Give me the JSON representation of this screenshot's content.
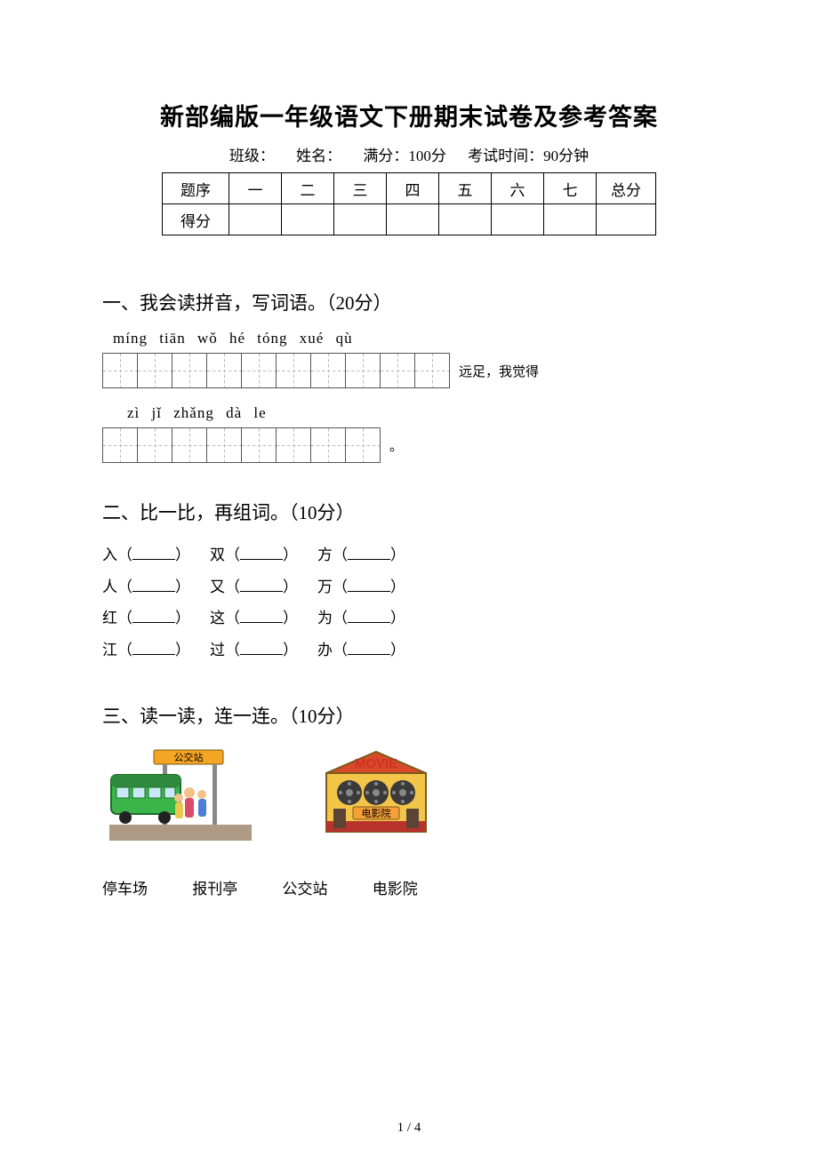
{
  "title": "新部编版一年级语文下册期末试卷及参考答案",
  "meta": {
    "class_label": "班级：",
    "name_label": "姓名：",
    "full_marks_label": "满分：100分",
    "time_label": "考试时间：90分钟"
  },
  "score_table": {
    "row1_label": "题序",
    "row2_label": "得分",
    "cols": [
      "一",
      "二",
      "三",
      "四",
      "五",
      "六",
      "七",
      "总分"
    ]
  },
  "section1": {
    "heading": "一、我会读拼音，写词语。（20分）",
    "line1_pinyin": [
      "míng",
      "tiān",
      "wǒ",
      "hé",
      "tóng",
      "xué",
      "qù"
    ],
    "line1_boxes": 10,
    "line1_after": "远足，我觉得",
    "line2_pinyin": [
      "zì",
      "jǐ",
      "zhǎng",
      "dà",
      "le"
    ],
    "line2_boxes": 8,
    "line2_after": "。"
  },
  "section2": {
    "heading": "二、比一比，再组词。（10分）",
    "rows": [
      [
        "入",
        "双",
        "方"
      ],
      [
        "人",
        "又",
        "万"
      ],
      [
        "红",
        "这",
        "为"
      ],
      [
        "江",
        "过",
        "办"
      ]
    ]
  },
  "section3": {
    "heading": "三、读一读，连一连。（10分）",
    "words": [
      "停车场",
      "报刊亭",
      "公交站",
      "电影院"
    ],
    "image1_label": "公交站",
    "image2_label": "MOVIE",
    "image2_sublabel": "电影院"
  },
  "page_number": "1 / 4",
  "colors": {
    "bus_body": "#3bb44a",
    "bus_roof": "#2e8b3d",
    "sign_board": "#f5a524",
    "sign_pole": "#888888",
    "ground": "#ad9a85",
    "cinema_top": "#d9492a",
    "cinema_yellow": "#f3c64a",
    "cinema_sign": "#f7a03a",
    "cinema_dark": "#5b4436",
    "cinema_red": "#b8332c",
    "reel": "#3a3a3a",
    "movie_text": "#cc3322"
  }
}
